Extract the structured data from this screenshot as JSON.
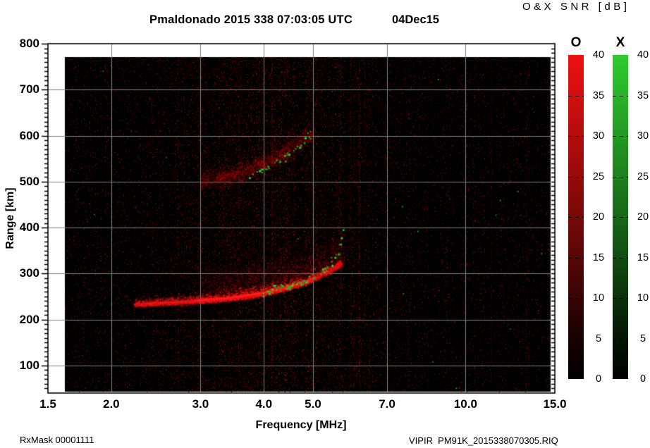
{
  "header": {
    "title": "Pmaldonado 2015 338 07:03:05 UTC",
    "date": "04Dec15",
    "colorbar_title": "O&X SNR [dB]"
  },
  "footer": {
    "rx_mask": "RxMask 00001111",
    "file_label": "VIPIR  PM91K_2015338070305.RIQ"
  },
  "chart_data": {
    "type": "heatmap",
    "title": "Pmaldonado 2015 338 07:03:05 UTC",
    "subtitle": "04Dec15",
    "xlabel": "Frequency [MHz]",
    "ylabel": "Range [km]",
    "x_scale": "log",
    "x_range": [
      1.5,
      15.0
    ],
    "x_ticks": [
      "1.5",
      "2.0",
      "3.0",
      "4.0",
      "5.0",
      "7.0",
      "10.0",
      "15.0"
    ],
    "y_range": [
      40,
      800
    ],
    "y_ticks": [
      100,
      200,
      300,
      400,
      500,
      600,
      700,
      800
    ],
    "y_minor_tick_km": 10,
    "grid": true,
    "plot_background": "#000000",
    "grid_color": "#808080",
    "colorbars": [
      {
        "id": "O",
        "label": "O",
        "units": "dB",
        "min": 0,
        "max": 40,
        "tick_step": 5,
        "top_color": "#ee1111"
      },
      {
        "id": "X",
        "label": "X",
        "units": "dB",
        "min": 0,
        "max": 40,
        "tick_step": 5,
        "top_color": "#2ecb2e"
      }
    ],
    "series": [
      {
        "id": "o1",
        "name": "O-mode first-hop F-layer trace",
        "color": "#ff2020",
        "points": [
          [
            2.22,
            233
          ],
          [
            2.5,
            236
          ],
          [
            2.8,
            239
          ],
          [
            3.1,
            242
          ],
          [
            3.4,
            246
          ],
          [
            3.7,
            251
          ],
          [
            4.0,
            257
          ],
          [
            4.3,
            265
          ],
          [
            4.6,
            274
          ],
          [
            4.9,
            284
          ],
          [
            5.15,
            295
          ],
          [
            5.4,
            307
          ],
          [
            5.65,
            320
          ]
        ]
      },
      {
        "id": "x1",
        "name": "X-mode first-hop trace",
        "color": "#33cc33",
        "points": [
          [
            4.0,
            261
          ],
          [
            4.3,
            270
          ],
          [
            4.6,
            279
          ],
          [
            4.9,
            290
          ],
          [
            5.1,
            299
          ],
          [
            5.3,
            310
          ],
          [
            5.5,
            330
          ],
          [
            5.65,
            355
          ],
          [
            5.75,
            380
          ],
          [
            5.8,
            397
          ]
        ]
      },
      {
        "id": "o2",
        "name": "O-mode second-hop trace",
        "color": "#cc1010",
        "points": [
          [
            3.0,
            502
          ],
          [
            3.3,
            509
          ],
          [
            3.6,
            519
          ],
          [
            3.9,
            533
          ],
          [
            4.2,
            551
          ],
          [
            4.5,
            571
          ],
          [
            4.75,
            589
          ],
          [
            5.0,
            607
          ]
        ]
      },
      {
        "id": "x2",
        "name": "X-mode second-hop trace",
        "color": "#33cc33",
        "points": [
          [
            3.7,
            512
          ],
          [
            3.95,
            524
          ],
          [
            4.2,
            541
          ],
          [
            4.45,
            560
          ],
          [
            4.7,
            580
          ],
          [
            4.92,
            599
          ]
        ]
      }
    ],
    "noise": {
      "rfi_lines_mhz": [
        6.15,
        6.32,
        11.2,
        13.2
      ]
    }
  }
}
